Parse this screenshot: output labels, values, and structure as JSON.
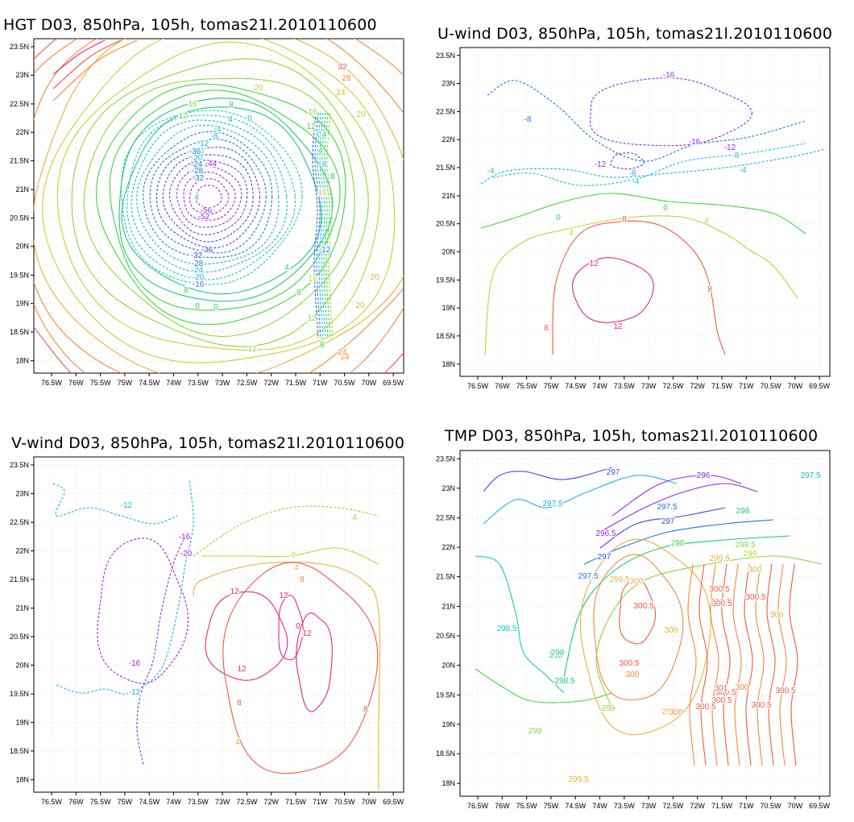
{
  "chart_data": [
    {
      "type": "contour",
      "title": "HGT D03, 850hPa, 105h, tomas21l.2010110600",
      "x_ticks": [
        "76.5W",
        "76W",
        "75.5W",
        "75W",
        "74.5W",
        "74W",
        "73.5W",
        "73W",
        "72.5W",
        "72W",
        "71.5W",
        "71W",
        "70.5W",
        "70W",
        "69.5W"
      ],
      "y_ticks": [
        "23.5N",
        "23N",
        "22.5N",
        "22N",
        "21.5N",
        "21N",
        "20.5N",
        "20N",
        "19.5N",
        "19N",
        "18.5N",
        "18N"
      ],
      "xlim": [
        -76.7,
        -69.4
      ],
      "ylim": [
        17.9,
        23.6
      ],
      "grid": true,
      "contour_labels": [
        "32",
        "28",
        "24",
        "20",
        "20",
        "16",
        "16",
        "12",
        "12",
        "8",
        "8",
        "4",
        "4",
        "0",
        "0",
        "0",
        "-4",
        "-8",
        "-12",
        "-16",
        "-20",
        "-24",
        "-28",
        "-32",
        "-36",
        "-36",
        "-44",
        "-52",
        "-56",
        "4",
        "8",
        "12",
        "16",
        "20",
        "24",
        "-4",
        "-8",
        "-12",
        "-16",
        "-20",
        "-24",
        "-28",
        "-32",
        "4",
        "8",
        "12",
        "16",
        "20",
        "24",
        "0",
        "8"
      ]
    },
    {
      "type": "contour",
      "title": "U-wind D03, 850hPa, 105h, tomas21l.2010110600",
      "x_ticks": [
        "76.5W",
        "76W",
        "75.5W",
        "75W",
        "74.5W",
        "74W",
        "73.5W",
        "73W",
        "72.5W",
        "72W",
        "71.5W",
        "71W",
        "70.5W",
        "70W",
        "69.5W"
      ],
      "y_ticks": [
        "23.5N",
        "23N",
        "22.5N",
        "22N",
        "21.5N",
        "21N",
        "20.5N",
        "20N",
        "19.5N",
        "19N",
        "18.5N",
        "18N"
      ],
      "xlim": [
        -76.7,
        -69.4
      ],
      "ylim": [
        17.9,
        23.6
      ],
      "grid": true,
      "contour_labels": [
        "-16",
        "-16",
        "-12",
        "-12",
        "-8",
        "-8",
        "-8",
        "-4",
        "-4",
        "-4",
        "0",
        "0",
        "4",
        "4",
        "8",
        "8",
        "8",
        "12",
        "12"
      ]
    },
    {
      "type": "contour",
      "title": "V-wind D03, 850hPa, 105h, tomas21l.2010110600",
      "x_ticks": [
        "76.5W",
        "76W",
        "75.5W",
        "75W",
        "74.5W",
        "74W",
        "73.5W",
        "73W",
        "72.5W",
        "72W",
        "71.5W",
        "71W",
        "70.5W",
        "70W",
        "69.5W"
      ],
      "y_ticks": [
        "23.5N",
        "23N",
        "22.5N",
        "22N",
        "21.5N",
        "21N",
        "20.5N",
        "20N",
        "19.5N",
        "19N",
        "18.5N",
        "18N"
      ],
      "xlim": [
        -76.7,
        -69.4
      ],
      "ylim": [
        17.9,
        23.6
      ],
      "grid": true,
      "contour_labels": [
        "-12",
        "-12",
        "-16",
        "-16",
        "-20",
        "4",
        "0",
        "4",
        "8",
        "8",
        "8",
        "12",
        "12",
        "12",
        "0",
        "12",
        "4"
      ]
    },
    {
      "type": "contour",
      "title": "TMP D03, 850hPa, 105h, tomas21l.2010110600",
      "x_ticks": [
        "76.5W",
        "76W",
        "75.5W",
        "75W",
        "74.5W",
        "74W",
        "73.5W",
        "73W",
        "72.5W",
        "72W",
        "71.5W",
        "71W",
        "70.5W",
        "70W",
        "69.5W"
      ],
      "y_ticks": [
        "23.5N",
        "23N",
        "22.5N",
        "22N",
        "21.5N",
        "21N",
        "20.5N",
        "20N",
        "19.5N",
        "19N",
        "18.5N",
        "18N"
      ],
      "xlim": [
        -76.7,
        -69.4
      ],
      "ylim": [
        17.9,
        23.6
      ],
      "grid": true,
      "contour_labels": [
        "297",
        "296",
        "297.5",
        "297.5",
        "298",
        "297.5",
        "296.5",
        "297",
        "297",
        "298",
        "298.5",
        "299.5",
        "299",
        "300",
        "297.5",
        "299.5",
        "300",
        "300.5",
        "300.5",
        "300.5",
        "300.5",
        "300.5",
        "300",
        "298.5",
        "300",
        "298",
        "300.5",
        "300.5",
        "300",
        "301",
        "300.5",
        "298.5",
        "300",
        "300.5",
        "300.5",
        "299",
        "299.5",
        "300",
        "300.5",
        "299",
        "299.5",
        "298"
      ]
    }
  ],
  "colors": {
    "ramp": [
      "#8a2be2",
      "#a01fe0",
      "#6b3ad6",
      "#3c48e6",
      "#1a78e6",
      "#19b3e0",
      "#19c9b8",
      "#1ec97a",
      "#3fd63f",
      "#8ed63a",
      "#c9cf33",
      "#e6b13a",
      "#f0893c",
      "#ee5a46",
      "#e6287a",
      "#d61fa8",
      "#c21fc9"
    ],
    "frame": "#000000",
    "grid": "#c8c8c8"
  }
}
